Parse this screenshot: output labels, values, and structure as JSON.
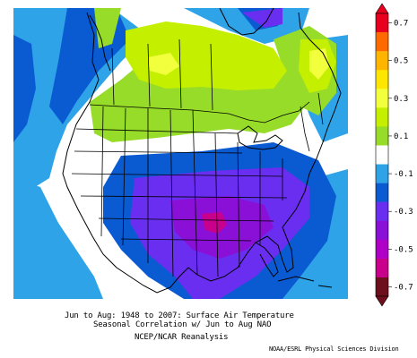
{
  "caption": {
    "line1": "Jun to Aug: 1948 to 2007: Surface Air Temperature",
    "line2": "Seasonal Correlation w/ Jun to Aug NAO",
    "line3": "NCEP/NCAR Reanalysis"
  },
  "credit": "NOAA/ESRL Physical Sciences Division",
  "legend": {
    "labels": [
      "0.7",
      "0.5",
      "0.3",
      "0.1",
      "-0.1",
      "-0.3",
      "-0.5",
      "-0.7"
    ],
    "levels": [
      {
        "range": "0.7 and above",
        "color": "#e8001e"
      },
      {
        "range": "0.6 to 0.7",
        "color": "#ff6a00"
      },
      {
        "range": "0.5 to 0.6",
        "color": "#ffb400"
      },
      {
        "range": "0.4 to 0.5",
        "color": "#ffe600"
      },
      {
        "range": "0.3 to 0.4",
        "color": "#f2ff3c"
      },
      {
        "range": "0.2 to 0.3",
        "color": "#c4f000"
      },
      {
        "range": "0.1 to 0.2",
        "color": "#96dc28"
      },
      {
        "range": "-0.1 to 0.1",
        "color": "#ffffff"
      },
      {
        "range": "-0.2 to -0.1",
        "color": "#2ea3e8"
      },
      {
        "range": "-0.3 to -0.2",
        "color": "#0a5ad2"
      },
      {
        "range": "-0.4 to -0.3",
        "color": "#6a2ef0"
      },
      {
        "range": "-0.5 to -0.4",
        "color": "#8a10d8"
      },
      {
        "range": "-0.6 to -0.5",
        "color": "#b000c8"
      },
      {
        "range": "-0.7 to -0.6",
        "color": "#c8008c"
      },
      {
        "range": "-0.7 and below",
        "color": "#6e0f1e"
      }
    ]
  },
  "map": {
    "region": "North America",
    "layers": [
      "shaded correlation field",
      "continent outline",
      "state and province boundaries"
    ]
  }
}
